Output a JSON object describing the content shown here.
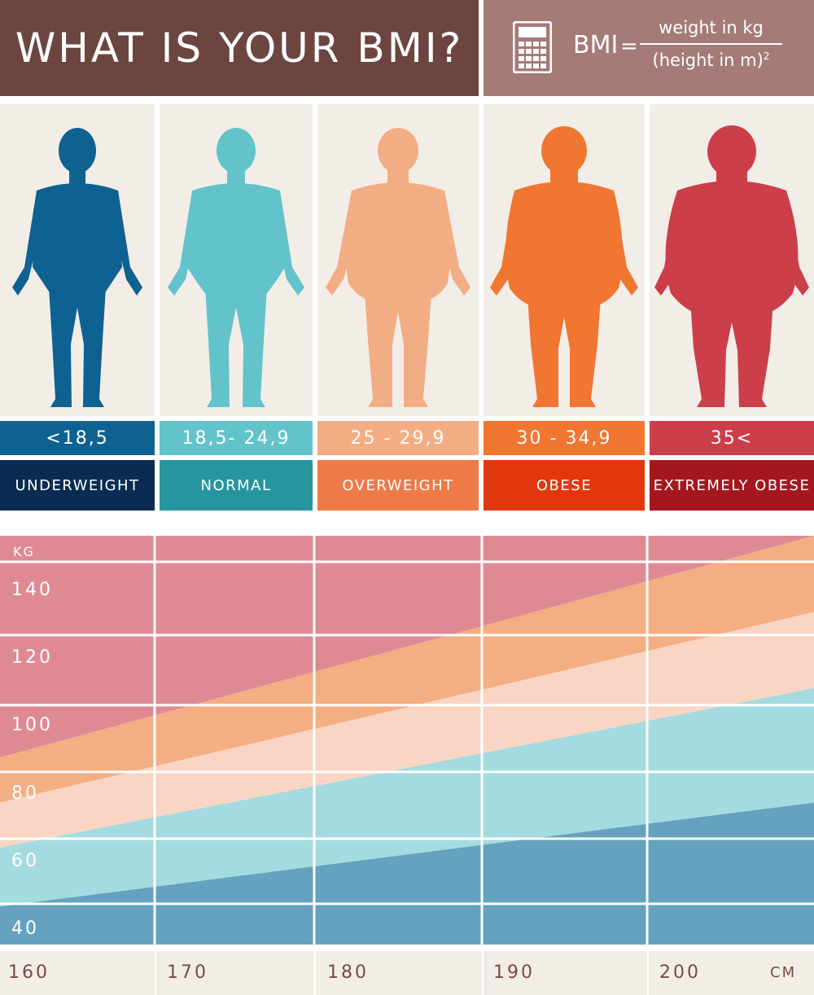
{
  "header": {
    "title": "WHAT IS YOUR BMI?",
    "formula_lhs": "BMI",
    "formula_eq": "=",
    "formula_numerator": "weight in kg",
    "formula_denominator": "(height in m)",
    "formula_exponent": "2",
    "icon": "calculator-icon"
  },
  "categories": [
    {
      "range": "<18,5",
      "label": "UNDERWEIGHT",
      "figure_color": "#0e6291",
      "range_color": "#0e6291",
      "label_color": "#0a2c52",
      "icon": "person-silhouette-icon"
    },
    {
      "range": "18,5- 24,9",
      "label": "NORMAL",
      "figure_color": "#63c3ca",
      "range_color": "#63c3ca",
      "label_color": "#2695a0",
      "icon": "person-silhouette-icon"
    },
    {
      "range": "25 - 29,9",
      "label": "OVERWEIGHT",
      "figure_color": "#f3ad85",
      "range_color": "#f3ad85",
      "label_color": "#ee7a47",
      "icon": "person-silhouette-icon"
    },
    {
      "range": "30 - 34,9",
      "label": "OBESE",
      "figure_color": "#f07631",
      "range_color": "#f07631",
      "label_color": "#e2370d",
      "icon": "person-silhouette-icon"
    },
    {
      "range": "35<",
      "label": "EXTREMELY OBESE",
      "figure_color": "#cc3e4a",
      "range_color": "#cc3e4a",
      "label_color": "#a5161f",
      "icon": "person-silhouette-icon"
    }
  ],
  "chart": {
    "y_unit": "KG",
    "x_unit": "CM",
    "y_ticks": [
      "140",
      "120",
      "100",
      "80",
      "60",
      "40"
    ],
    "x_ticks": [
      "160",
      "170",
      "180",
      "190",
      "200"
    ]
  },
  "chart_data": {
    "type": "area",
    "xlabel": "CM",
    "ylabel": "KG",
    "xlim": [
      160,
      210
    ],
    "ylim": [
      36,
      154
    ],
    "x_ticks": [
      160,
      170,
      180,
      190,
      200
    ],
    "y_ticks": [
      40,
      60,
      80,
      100,
      120,
      140
    ],
    "bands": [
      {
        "name": "UNDERWEIGHT",
        "color": "#65a2c0",
        "lower": [
          [
            160,
            36
          ],
          [
            210,
            36
          ]
        ],
        "upper": [
          [
            160,
            47
          ],
          [
            210,
            77
          ]
        ]
      },
      {
        "name": "NORMAL",
        "color": "#a3dbe0",
        "lower": [
          [
            160,
            47
          ],
          [
            210,
            77
          ]
        ],
        "upper": [
          [
            160,
            64
          ],
          [
            210,
            110
          ]
        ]
      },
      {
        "name": "OVERWEIGHT",
        "color": "#fad5c3",
        "lower": [
          [
            160,
            64
          ],
          [
            210,
            110
          ]
        ],
        "upper": [
          [
            160,
            77
          ],
          [
            210,
            132
          ]
        ]
      },
      {
        "name": "OBESE",
        "color": "#f4ae83",
        "lower": [
          [
            160,
            77
          ],
          [
            210,
            132
          ]
        ],
        "upper": [
          [
            160,
            90
          ],
          [
            210,
            154
          ]
        ]
      },
      {
        "name": "EXTREMELY OBESE",
        "color": "#df8a93",
        "lower": [
          [
            160,
            90
          ],
          [
            210,
            154
          ]
        ],
        "upper": [
          [
            160,
            154
          ],
          [
            210,
            154
          ]
        ]
      }
    ]
  }
}
